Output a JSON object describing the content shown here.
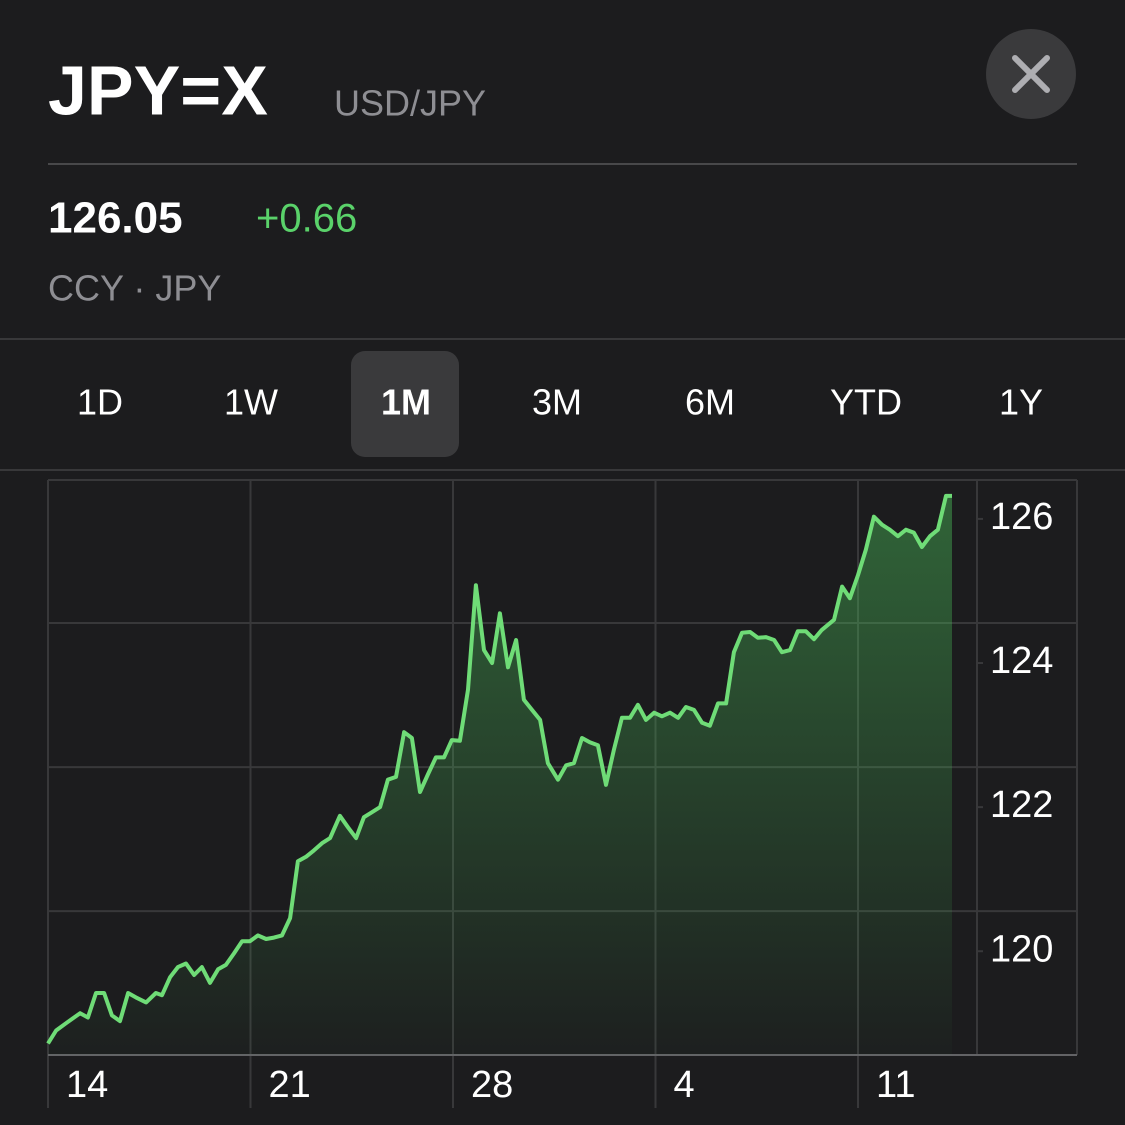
{
  "header": {
    "symbol": "JPY=X",
    "name": "USD/JPY"
  },
  "quote": {
    "price": "126.05",
    "change": "+0.66",
    "exchange": "CCY · JPY"
  },
  "tabs": [
    "1D",
    "1W",
    "1M",
    "3M",
    "6M",
    "YTD",
    "1Y"
  ],
  "selected_tab": 2,
  "chart_data": {
    "type": "line",
    "color": "#6fdc77",
    "x": [
      0,
      0.28,
      0.62,
      1.11,
      1.38,
      1.66,
      1.94,
      2.21,
      2.49,
      2.77,
      3.04,
      3.39,
      3.73,
      3.94,
      4.22,
      4.49,
      4.77,
      5.05,
      5.32,
      5.6,
      5.88,
      6.15,
      6.43,
      6.71,
      6.98,
      7.26,
      7.54,
      7.81,
      8.09,
      8.37,
      8.64,
      8.92,
      9.19,
      9.47,
      9.75,
      10.09,
      10.37,
      10.65,
      10.92,
      11.2,
      11.48,
      11.75,
      12.03,
      12.31,
      12.58,
      12.86,
      13.14,
      13.41,
      13.69,
      13.96,
      14.24,
      14.52,
      14.79,
      15.07,
      15.35,
      15.62,
      15.9,
      16.18,
      16.45,
      16.73,
      17.01,
      17.28,
      17.63,
      17.91,
      18.18,
      18.46,
      18.73,
      19.01,
      19.29,
      19.56,
      19.84,
      20.12,
      20.39,
      20.67,
      20.95,
      21.22,
      21.5,
      21.78,
      22.05,
      22.33,
      22.61,
      22.88,
      23.16,
      23.44,
      23.71,
      23.99,
      24.27,
      24.54,
      24.82,
      25.1,
      25.37,
      25.65,
      25.92,
      26.2,
      26.48,
      26.75,
      27.17,
      27.45,
      27.72,
      28.0,
      28.27,
      28.55,
      28.83,
      29.1,
      29.38,
      29.66,
      29.93,
      30.21,
      30.49,
      30.76,
      31.04,
      31.25
    ],
    "values": [
      118.72,
      118.9,
      119.0,
      119.14,
      119.08,
      119.42,
      119.42,
      119.11,
      119.03,
      119.42,
      119.36,
      119.29,
      119.42,
      119.39,
      119.64,
      119.78,
      119.83,
      119.67,
      119.78,
      119.56,
      119.75,
      119.81,
      119.97,
      120.14,
      120.14,
      120.22,
      120.17,
      120.19,
      120.22,
      120.46,
      121.25,
      121.31,
      121.4,
      121.5,
      121.57,
      121.88,
      121.72,
      121.57,
      121.86,
      121.93,
      122.0,
      122.38,
      122.42,
      123.04,
      122.96,
      122.21,
      122.46,
      122.69,
      122.69,
      122.93,
      122.92,
      123.63,
      125.08,
      124.18,
      124.0,
      124.69,
      123.94,
      124.32,
      123.49,
      123.35,
      123.21,
      122.61,
      122.38,
      122.58,
      122.61,
      122.96,
      122.9,
      122.86,
      122.31,
      122.79,
      123.24,
      123.24,
      123.42,
      123.21,
      123.31,
      123.26,
      123.31,
      123.24,
      123.39,
      123.35,
      123.17,
      123.13,
      123.44,
      123.44,
      124.15,
      124.42,
      124.43,
      124.35,
      124.36,
      124.32,
      124.15,
      124.18,
      124.44,
      124.44,
      124.33,
      124.46,
      124.6,
      125.06,
      124.9,
      125.22,
      125.57,
      126.03,
      125.92,
      125.85,
      125.76,
      125.85,
      125.81,
      125.61,
      125.76,
      125.85,
      126.32,
      126.32
    ],
    "xlim": [
      0,
      35.57
    ],
    "xticks": [
      {
        "value": 0,
        "label": "14"
      },
      {
        "value": 7,
        "label": "21"
      },
      {
        "value": 14,
        "label": "28"
      },
      {
        "value": 21,
        "label": "4"
      },
      {
        "value": 28,
        "label": "11"
      }
    ],
    "ylim": [
      118.56,
      126.54
    ],
    "yticks": [
      120,
      122,
      124,
      126
    ],
    "grid": true
  }
}
